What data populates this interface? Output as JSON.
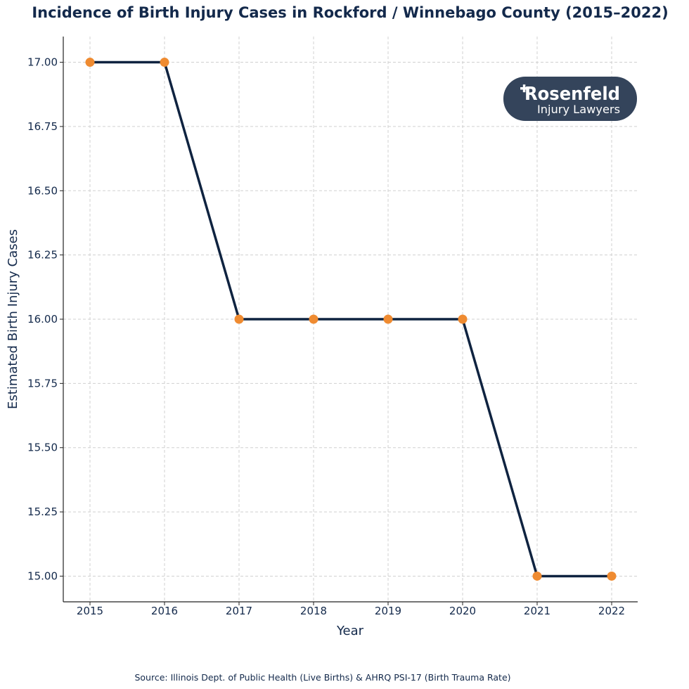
{
  "chart_data": {
    "type": "line",
    "title": "Incidence of Birth Injury Cases in Rockford / Winnebago County (2015–2022)",
    "xlabel": "Year",
    "ylabel": "Estimated Birth Injury Cases",
    "categories": [
      "2015",
      "2016",
      "2017",
      "2018",
      "2019",
      "2020",
      "2021",
      "2022"
    ],
    "values": [
      17,
      17,
      16,
      16,
      16,
      16,
      15,
      15
    ],
    "ylim": [
      14.9,
      17.1
    ],
    "yticks": [
      "15.00",
      "15.25",
      "15.50",
      "15.75",
      "16.00",
      "16.25",
      "16.50",
      "16.75",
      "17.00"
    ],
    "grid": true,
    "line_color": "#0f2340",
    "marker_color": "#ef8b31",
    "source": "Source: Illinois Dept. of Public Health (Live Births) & AHRQ PSI-17 (Birth Trauma Rate)"
  },
  "logo": {
    "brand": "Rosenfeld",
    "tagline": "Injury Lawyers",
    "background_color": "#34445b"
  }
}
